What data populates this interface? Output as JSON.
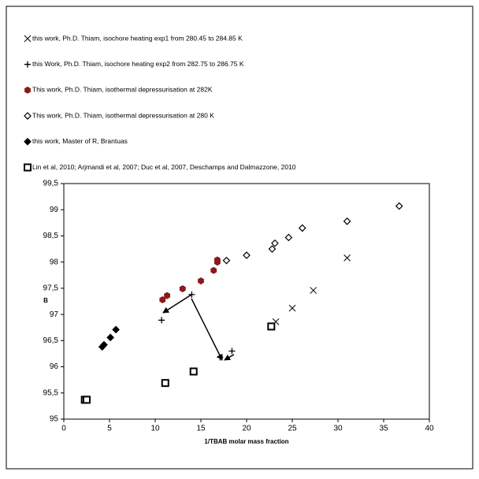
{
  "chart_data": {
    "type": "scatter",
    "x_label": "1/TBAB molar mass fraction",
    "y_label": "B",
    "xlim": [
      0,
      40
    ],
    "xticks": [
      0,
      5,
      10,
      15,
      20,
      25,
      30,
      35,
      40
    ],
    "ylim": [
      95,
      99.5
    ],
    "yticks": [
      95,
      {
        "value": 95.5,
        "label": "95,5"
      },
      96,
      {
        "value": 96.5,
        "label": "96,5"
      },
      97,
      {
        "value": 97.5,
        "label": "97,5"
      },
      98,
      {
        "value": 98.5,
        "label": "98,5"
      },
      99,
      {
        "value": 99.5,
        "label": "99,5"
      }
    ],
    "grid": false,
    "series": [
      {
        "name": "this work, Ph.D. Thiam, isochore heating exp1 from 280.45 to 284.85 K",
        "color": "#000000",
        "marker": "x",
        "x": [
          23.2,
          25.0,
          27.3,
          31.0
        ],
        "values": [
          96.86,
          97.12,
          97.46,
          98.08
        ]
      },
      {
        "name": "this Work, Ph.D. Thiam, isochore heating exp2 from 282.75 to 286.75 K",
        "color": "#000000",
        "marker": "plus",
        "x": [
          10.7,
          14.0,
          17.1,
          18.4
        ],
        "values": [
          96.89,
          97.38,
          96.18,
          96.3
        ]
      },
      {
        "name": "This work, Ph.D. Thiam, isothermal depressurisation at 282K",
        "color": "#8b1a1a",
        "marker": "hexagon",
        "x": [
          10.8,
          11.3,
          13.0,
          15.0,
          16.4,
          16.8,
          16.8
        ],
        "values": [
          97.28,
          97.36,
          97.49,
          97.64,
          97.84,
          98.0,
          98.04
        ]
      },
      {
        "name": "This work, Ph.D. Thiam, isothermal depressurisation at 280 K",
        "color": "#000000",
        "marker": "diamond-open",
        "x": [
          17.8,
          20.0,
          22.8,
          23.1,
          24.6,
          26.1,
          31.0,
          36.7
        ],
        "values": [
          98.03,
          98.13,
          98.25,
          98.36,
          98.47,
          98.65,
          98.78,
          99.07
        ]
      },
      {
        "name": "this work, Master of R, Brantuas",
        "color": "#000000",
        "marker": "diamond",
        "x": [
          4.2,
          4.4,
          5.1,
          5.7
        ],
        "values": [
          96.38,
          96.42,
          96.56,
          96.71
        ]
      },
      {
        "name": "Lin et al, 2010; Arjmandi et al, 2007; Duc et al, 2007, Deschamps and Dalmazzone, 2010",
        "color": "#000000",
        "marker": "square-open",
        "x": [
          2.3,
          2.5,
          11.1,
          14.2,
          22.7
        ],
        "values": [
          95.37,
          95.37,
          95.69,
          95.91,
          96.77
        ]
      }
    ]
  }
}
